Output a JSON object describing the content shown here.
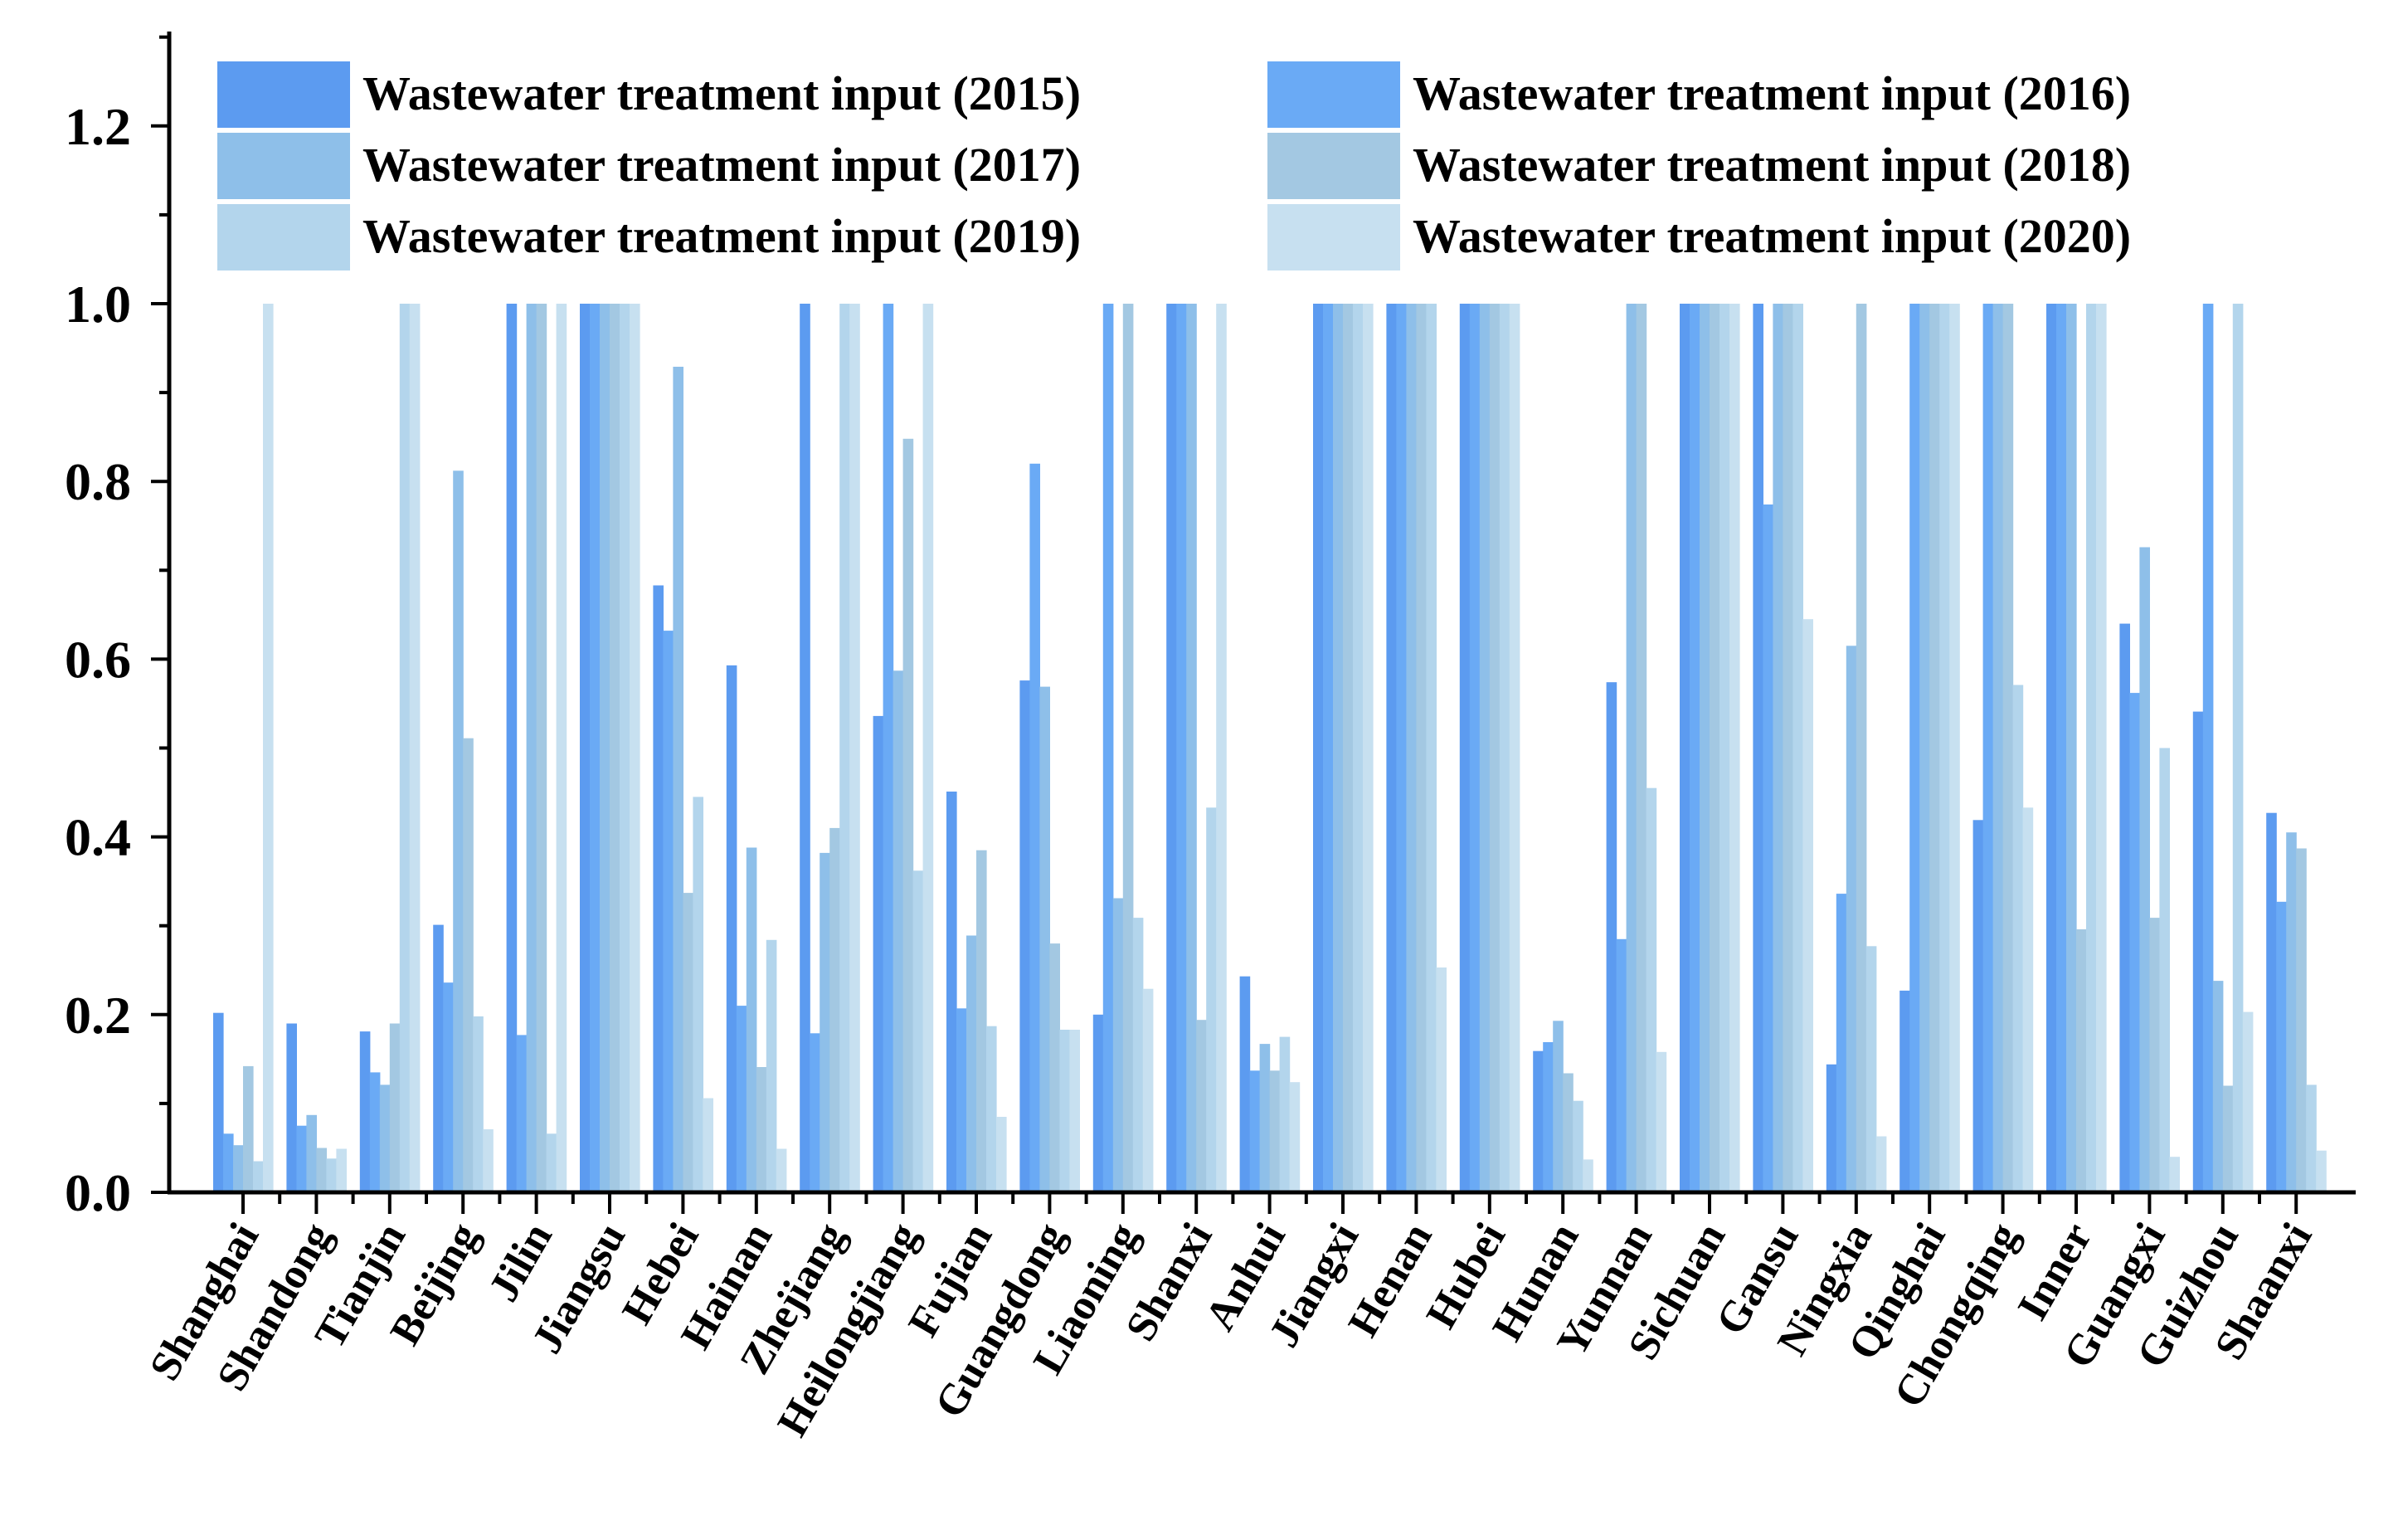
{
  "chart_data": {
    "type": "bar",
    "title": "",
    "xlabel": "",
    "ylabel": "",
    "ylim": [
      0,
      1.3
    ],
    "yticks": [
      "0.0",
      "0.2",
      "0.4",
      "0.6",
      "0.8",
      "1.0",
      "1.2"
    ],
    "legend_position": "top",
    "categories": [
      "Shanghai",
      "Shandong",
      "Tianjin",
      "Beijing",
      "Jilin",
      "Jiangsu",
      "Hebei",
      "Hainan",
      "Zhejiang",
      "Heilongjiang",
      "Fujian",
      "Guangdong",
      "Liaoning",
      "Shanxi",
      "Anhui",
      "Jiangxi",
      "Henan",
      "Hubei",
      "Hunan",
      "Yunnan",
      "Sichuan",
      "Gansu",
      "Ningxia",
      "Qinghai",
      "Chongqing",
      "Inner",
      "Guangxi",
      "Guizhou",
      "Shaanxi"
    ],
    "series": [
      {
        "name": "Wastewater treatment input (2015)",
        "color": "#5c9bf0",
        "values": [
          0.202,
          0.19,
          0.181,
          0.301,
          1.0,
          1.0,
          0.683,
          0.593,
          1.0,
          0.536,
          0.451,
          0.576,
          0.2,
          1.0,
          0.243,
          1.0,
          1.0,
          1.0,
          0.159,
          0.574,
          1.0,
          1.0,
          0.144,
          0.227,
          0.419,
          1.0,
          0.64,
          0.541,
          0.427
        ]
      },
      {
        "name": "Wastewater treatment input (2016)",
        "color": "#6aaaf5",
        "values": [
          0.066,
          0.075,
          0.135,
          0.236,
          0.177,
          1.0,
          0.632,
          0.21,
          0.179,
          1.0,
          0.207,
          0.82,
          1.0,
          1.0,
          0.137,
          1.0,
          1.0,
          1.0,
          0.169,
          0.285,
          1.0,
          0.774,
          0.336,
          1.0,
          1.0,
          1.0,
          0.562,
          1.0,
          0.327
        ]
      },
      {
        "name": "Wastewater treatment input (2017)",
        "color": "#8ebfe9",
        "values": [
          0.053,
          0.087,
          0.121,
          0.812,
          1.0,
          1.0,
          0.929,
          0.388,
          0.382,
          0.587,
          0.289,
          0.569,
          0.331,
          1.0,
          0.167,
          1.0,
          1.0,
          1.0,
          0.193,
          1.0,
          1.0,
          1.0,
          0.615,
          1.0,
          1.0,
          1.0,
          0.726,
          0.238,
          0.405
        ]
      },
      {
        "name": "Wastewater treatment input (2018)",
        "color": "#a3c8e2",
        "values": [
          0.142,
          0.05,
          0.19,
          0.511,
          1.0,
          1.0,
          0.337,
          0.141,
          0.41,
          0.848,
          0.385,
          0.28,
          1.0,
          0.194,
          0.137,
          1.0,
          1.0,
          1.0,
          0.134,
          1.0,
          1.0,
          1.0,
          1.0,
          1.0,
          1.0,
          0.296,
          0.309,
          0.12,
          0.387
        ]
      },
      {
        "name": "Wastewater treatment input (2019)",
        "color": "#b3d5ec",
        "values": [
          0.035,
          0.038,
          1.0,
          0.198,
          0.066,
          1.0,
          0.445,
          0.284,
          1.0,
          0.362,
          0.187,
          0.183,
          0.309,
          0.433,
          0.175,
          1.0,
          1.0,
          1.0,
          0.103,
          0.455,
          1.0,
          1.0,
          0.277,
          1.0,
          0.571,
          1.0,
          0.5,
          1.0,
          0.121
        ]
      },
      {
        "name": "Wastewater treatment input (2020)",
        "color": "#c7e0f0",
        "values": [
          1.0,
          0.049,
          1.0,
          0.071,
          1.0,
          1.0,
          0.106,
          0.049,
          1.0,
          1.0,
          0.085,
          0.183,
          0.229,
          1.0,
          0.124,
          1.0,
          0.253,
          1.0,
          0.037,
          0.158,
          1.0,
          0.645,
          0.063,
          1.0,
          0.433,
          1.0,
          0.04,
          0.203,
          0.047
        ]
      }
    ]
  }
}
